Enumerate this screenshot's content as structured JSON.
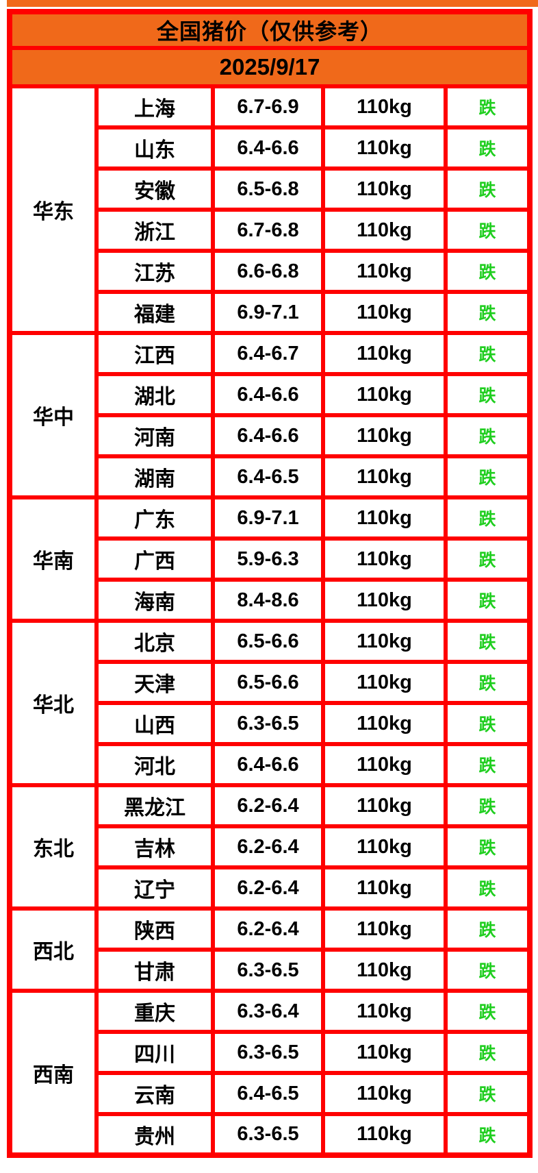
{
  "page": {
    "colors": {
      "banner_orange": "#F0691A",
      "grid_red": "#FF0000",
      "status_green": "#1FCE1F",
      "background": "#FFFFFF",
      "text": "#000000"
    }
  },
  "chart_data": {
    "type": "table",
    "title": "全国猪价（仅供参考）",
    "subtitle": "2025/9/17",
    "regions": [
      {
        "region": "华东",
        "rows": [
          {
            "province": "上海",
            "price": "6.7-6.9",
            "weight": "110kg",
            "status": "跌"
          },
          {
            "province": "山东",
            "price": "6.4-6.6",
            "weight": "110kg",
            "status": "跌"
          },
          {
            "province": "安徽",
            "price": "6.5-6.8",
            "weight": "110kg",
            "status": "跌"
          },
          {
            "province": "浙江",
            "price": "6.7-6.8",
            "weight": "110kg",
            "status": "跌"
          },
          {
            "province": "江苏",
            "price": "6.6-6.8",
            "weight": "110kg",
            "status": "跌"
          },
          {
            "province": "福建",
            "price": "6.9-7.1",
            "weight": "110kg",
            "status": "跌"
          }
        ]
      },
      {
        "region": "华中",
        "rows": [
          {
            "province": "江西",
            "price": "6.4-6.7",
            "weight": "110kg",
            "status": "跌"
          },
          {
            "province": "湖北",
            "price": "6.4-6.6",
            "weight": "110kg",
            "status": "跌"
          },
          {
            "province": "河南",
            "price": "6.4-6.6",
            "weight": "110kg",
            "status": "跌"
          },
          {
            "province": "湖南",
            "price": "6.4-6.5",
            "weight": "110kg",
            "status": "跌"
          }
        ]
      },
      {
        "region": "华南",
        "rows": [
          {
            "province": "广东",
            "price": "6.9-7.1",
            "weight": "110kg",
            "status": "跌"
          },
          {
            "province": "广西",
            "price": "5.9-6.3",
            "weight": "110kg",
            "status": "跌"
          },
          {
            "province": "海南",
            "price": "8.4-8.6",
            "weight": "110kg",
            "status": "跌"
          }
        ]
      },
      {
        "region": "华北",
        "rows": [
          {
            "province": "北京",
            "price": "6.5-6.6",
            "weight": "110kg",
            "status": "跌"
          },
          {
            "province": "天津",
            "price": "6.5-6.6",
            "weight": "110kg",
            "status": "跌"
          },
          {
            "province": "山西",
            "price": "6.3-6.5",
            "weight": "110kg",
            "status": "跌"
          },
          {
            "province": "河北",
            "price": "6.4-6.6",
            "weight": "110kg",
            "status": "跌"
          }
        ]
      },
      {
        "region": "东北",
        "rows": [
          {
            "province": "黑龙江",
            "price": "6.2-6.4",
            "weight": "110kg",
            "status": "跌"
          },
          {
            "province": "吉林",
            "price": "6.2-6.4",
            "weight": "110kg",
            "status": "跌"
          },
          {
            "province": "辽宁",
            "price": "6.2-6.4",
            "weight": "110kg",
            "status": "跌"
          }
        ]
      },
      {
        "region": "西北",
        "rows": [
          {
            "province": "陕西",
            "price": "6.2-6.4",
            "weight": "110kg",
            "status": "跌"
          },
          {
            "province": "甘肃",
            "price": "6.3-6.5",
            "weight": "110kg",
            "status": "跌"
          }
        ]
      },
      {
        "region": "西南",
        "rows": [
          {
            "province": "重庆",
            "price": "6.3-6.4",
            "weight": "110kg",
            "status": "跌"
          },
          {
            "province": "四川",
            "price": "6.3-6.5",
            "weight": "110kg",
            "status": "跌"
          },
          {
            "province": "云南",
            "price": "6.4-6.5",
            "weight": "110kg",
            "status": "跌"
          },
          {
            "province": "贵州",
            "price": "6.3-6.5",
            "weight": "110kg",
            "status": "跌"
          }
        ]
      }
    ]
  }
}
